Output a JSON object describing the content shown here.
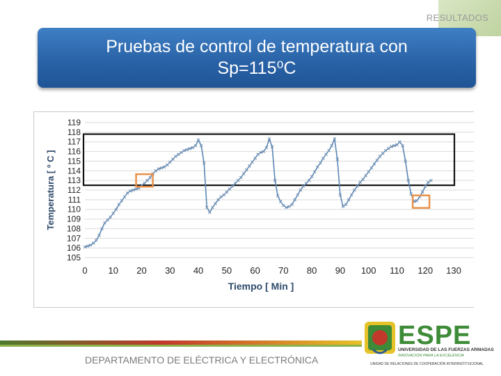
{
  "header": {
    "section": "RESULTADOS",
    "title": "Pruebas de control de temperatura con\nSp=115⁰C"
  },
  "footer": {
    "department": "DEPARTAMENTO DE ELÉCTRICA Y ELECTRÓNICA"
  },
  "logo": {
    "name": "ESPE",
    "line1": "UNIVERSIDAD DE LAS FUERZAS ARMADAS",
    "line2": "INNOVACIÓN PARA LA EXCELENCIA",
    "line3": "UNIDAD DE RELACIONES DE COOPERACIÓN INTERINSTITUCIONAL"
  },
  "colors": {
    "title_bg": "#2a63a8",
    "series": "#5a86b4",
    "markers": "#e8914a",
    "logo_green": "#3d8b37"
  },
  "chart_data": {
    "type": "line",
    "title": "",
    "xlabel": "Tiempo [ Min ]",
    "ylabel": "Temperatura [ º C ]",
    "xlim": [
      0,
      130
    ],
    "ylim": [
      105,
      119
    ],
    "xticks": [
      0,
      10,
      20,
      30,
      40,
      50,
      60,
      70,
      80,
      90,
      100,
      110,
      120,
      130
    ],
    "yticks": [
      105,
      106,
      107,
      108,
      109,
      110,
      111,
      112,
      113,
      114,
      115,
      116,
      117,
      118,
      119
    ],
    "grid": true,
    "band": [
      112.5,
      117.8
    ],
    "highlights": [
      [
        21,
        113
      ],
      [
        118.5,
        110.8
      ]
    ],
    "series": [
      {
        "name": "",
        "x": [
          0,
          1,
          2,
          3,
          4,
          5,
          6,
          7,
          8,
          9,
          10,
          11,
          12,
          13,
          14,
          15,
          16,
          17,
          18,
          19,
          20,
          21,
          22,
          23,
          24,
          25,
          26,
          27,
          28,
          29,
          30,
          31,
          32,
          33,
          34,
          35,
          36,
          37,
          38,
          39,
          40,
          41,
          42,
          43,
          44,
          45,
          46,
          47,
          48,
          49,
          50,
          51,
          52,
          53,
          54,
          55,
          56,
          57,
          58,
          59,
          60,
          61,
          62,
          63,
          64,
          65,
          66,
          67,
          68,
          69,
          70,
          71,
          72,
          73,
          74,
          75,
          76,
          77,
          78,
          79,
          80,
          81,
          82,
          83,
          84,
          85,
          86,
          87,
          88,
          89,
          90,
          91,
          92,
          93,
          94,
          95,
          96,
          97,
          98,
          99,
          100,
          101,
          102,
          103,
          104,
          105,
          106,
          107,
          108,
          109,
          110,
          111,
          112,
          113,
          114,
          115,
          116,
          117,
          118,
          119,
          120,
          121,
          122
        ],
        "y": [
          106.1,
          106.2,
          106.3,
          106.5,
          106.8,
          107.3,
          108.0,
          108.6,
          108.9,
          109.2,
          109.6,
          110.0,
          110.5,
          110.9,
          111.3,
          111.7,
          111.9,
          112.0,
          112.1,
          112.2,
          112.5,
          112.7,
          113.0,
          113.3,
          113.7,
          114.0,
          114.2,
          114.3,
          114.4,
          114.6,
          114.9,
          115.2,
          115.5,
          115.7,
          115.9,
          116.1,
          116.2,
          116.3,
          116.4,
          116.6,
          117.2,
          116.6,
          114.8,
          110.2,
          109.7,
          110.2,
          110.6,
          111.0,
          111.3,
          111.5,
          111.8,
          112.1,
          112.4,
          112.7,
          113.0,
          113.3,
          113.7,
          114.1,
          114.5,
          114.9,
          115.3,
          115.7,
          115.9,
          116.0,
          116.4,
          117.3,
          116.5,
          113.0,
          111.4,
          110.8,
          110.4,
          110.2,
          110.3,
          110.5,
          111.0,
          111.5,
          112.0,
          112.4,
          112.7,
          113.0,
          113.4,
          113.9,
          114.4,
          114.8,
          115.3,
          115.7,
          116.1,
          116.6,
          117.3,
          115.2,
          111.5,
          110.3,
          110.5,
          111.0,
          111.5,
          112.0,
          112.4,
          112.8,
          113.1,
          113.5,
          113.9,
          114.3,
          114.7,
          115.1,
          115.5,
          115.8,
          116.1,
          116.3,
          116.5,
          116.6,
          116.7,
          117.0,
          116.6,
          115.0,
          113.0,
          111.6,
          110.8,
          110.9,
          111.3,
          111.8,
          112.4,
          112.8,
          113.0
        ]
      }
    ]
  }
}
